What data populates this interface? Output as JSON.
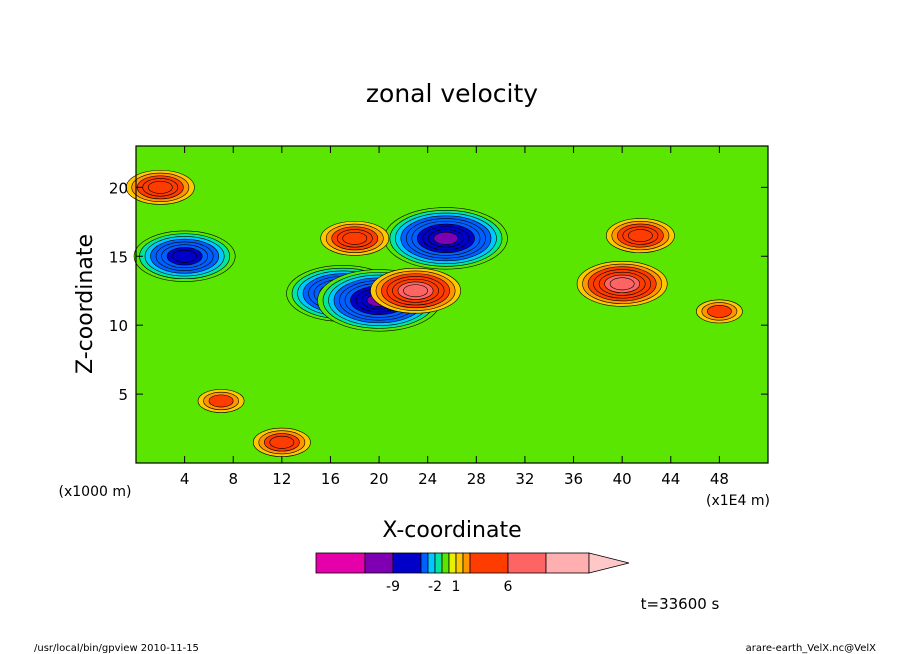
{
  "chart_data": {
    "type": "heatmap",
    "title": "zonal velocity",
    "xlabel": "X-coordinate",
    "ylabel": "Z-coordinate",
    "x_unit_left": "(x1000 m)",
    "x_unit_right": "(x1E4 m)",
    "xlim": [
      0,
      52
    ],
    "ylim": [
      0,
      23
    ],
    "x_ticks": [
      4,
      8,
      12,
      16,
      20,
      24,
      28,
      32,
      36,
      40,
      44,
      48
    ],
    "y_ticks": [
      5,
      10,
      15,
      20
    ],
    "time_label": "t=33600 s",
    "colorbar": {
      "levels": [
        -12,
        -9,
        -6,
        -3,
        -2,
        -1,
        0,
        1,
        2,
        3,
        6,
        9,
        12
      ],
      "tick_labels": [
        {
          "label": "-9",
          "level": -9
        },
        {
          "label": "-2",
          "level": -2
        },
        {
          "label": "1",
          "level": 1
        },
        {
          "label": "6",
          "level": 6
        }
      ],
      "colors": [
        "#e600aa",
        "#7f00b2",
        "#0000c8",
        "#0060ff",
        "#00c8ff",
        "#00e6a0",
        "#5ae600",
        "#e6f000",
        "#ffc800",
        "#ff9600",
        "#ff3c00",
        "#ff6464",
        "#ffafaf"
      ]
    },
    "features": [
      {
        "x": 17,
        "z": 12.3,
        "value": -9
      },
      {
        "x": 20,
        "z": 11.8,
        "value": -10
      },
      {
        "x": 25.5,
        "z": 16.3,
        "value": -10
      },
      {
        "x": 23,
        "z": 12.5,
        "value": 7
      },
      {
        "x": 40,
        "z": 13.0,
        "value": 7
      },
      {
        "x": 41.5,
        "z": 16.5,
        "value": 5
      },
      {
        "x": 18,
        "z": 16.3,
        "value": 5
      },
      {
        "x": 2,
        "z": 20.0,
        "value": 5
      },
      {
        "x": 4,
        "z": 15.0,
        "value": -8
      },
      {
        "x": 48,
        "z": 11.0,
        "value": 3
      },
      {
        "x": 7,
        "z": 4.5,
        "value": 3
      },
      {
        "x": 12,
        "z": 1.5,
        "value": 4
      }
    ]
  },
  "footer": {
    "left": "/usr/local/bin/gpview  2010-11-15",
    "right": "arare-earth_VelX.nc@VelX"
  }
}
